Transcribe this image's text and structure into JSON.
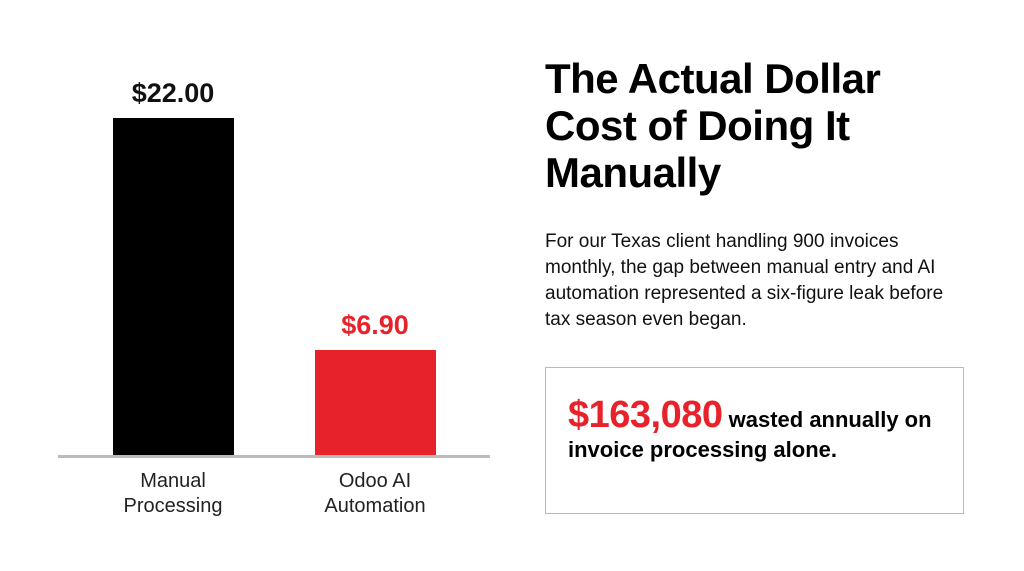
{
  "chart_data": {
    "type": "bar",
    "title": "The Actual Dollar Cost of Doing It Manually",
    "subtitle": "For our Texas client handling 900 invoices monthly, the gap between manual entry and AI automation represented a six-figure leak before tax season even began.",
    "categories": [
      "Manual Processing",
      "Odoo AI Automation"
    ],
    "values": [
      22.0,
      6.9
    ],
    "value_labels": [
      "$22.00",
      "$6.90"
    ],
    "colors": [
      "#000000",
      "#e8222a"
    ],
    "callout": {
      "highlight": "$163,080",
      "text": "wasted annually on invoice processing alone."
    }
  }
}
